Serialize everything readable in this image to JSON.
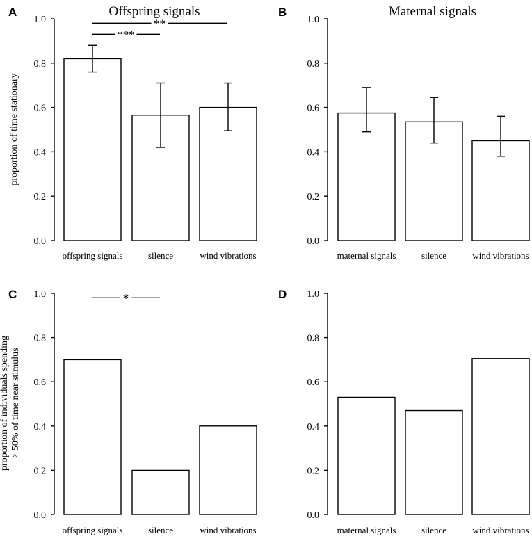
{
  "chart_data": [
    {
      "panel": "A",
      "type": "bar",
      "title": "Offspring signals",
      "ylabel": [
        "proportion of time stationary"
      ],
      "ylim": [
        0,
        1
      ],
      "yticks": [
        "0.0",
        "0.2",
        "0.4",
        "0.6",
        "0.8",
        "1.0"
      ],
      "categories": [
        "offspring signals",
        "silence",
        "wind vibrations"
      ],
      "values": [
        0.82,
        0.565,
        0.6
      ],
      "err_low": [
        0.76,
        0.42,
        0.495
      ],
      "err_high": [
        0.88,
        0.71,
        0.71
      ],
      "significance": [
        {
          "from": 0,
          "to": 2,
          "label": "**",
          "y": 0.98
        },
        {
          "from": 0,
          "to": 1,
          "label": "***",
          "y": 0.93
        }
      ]
    },
    {
      "panel": "B",
      "type": "bar",
      "title": "Maternal signals",
      "ylabel": [],
      "ylim": [
        0,
        1
      ],
      "yticks": [
        "0.0",
        "0.2",
        "0.4",
        "0.6",
        "0.8",
        "1.0"
      ],
      "categories": [
        "maternal signals",
        "silence",
        "wind vibrations"
      ],
      "values": [
        0.575,
        0.535,
        0.45
      ],
      "err_low": [
        0.49,
        0.44,
        0.38
      ],
      "err_high": [
        0.69,
        0.645,
        0.56
      ],
      "significance": []
    },
    {
      "panel": "C",
      "type": "bar",
      "title": "",
      "ylabel": [
        "proportion of individuals spending",
        "> 50% of time near stimulus"
      ],
      "ylim": [
        0,
        1
      ],
      "yticks": [
        "0.0",
        "0.2",
        "0.4",
        "0.6",
        "0.8",
        "1.0"
      ],
      "categories": [
        "offspring signals",
        "silence",
        "wind vibrations"
      ],
      "values": [
        0.7,
        0.2,
        0.4
      ],
      "err_low": [],
      "err_high": [],
      "significance": [
        {
          "from": 0,
          "to": 1,
          "label": "*",
          "y": 0.98
        }
      ]
    },
    {
      "panel": "D",
      "type": "bar",
      "title": "",
      "ylabel": [],
      "ylim": [
        0,
        1
      ],
      "yticks": [
        "0.0",
        "0.2",
        "0.4",
        "0.6",
        "0.8",
        "1.0"
      ],
      "categories": [
        "maternal signals",
        "silence",
        "wind vibrations"
      ],
      "values": [
        0.53,
        0.47,
        0.705
      ],
      "err_low": [],
      "err_high": [],
      "significance": []
    }
  ]
}
